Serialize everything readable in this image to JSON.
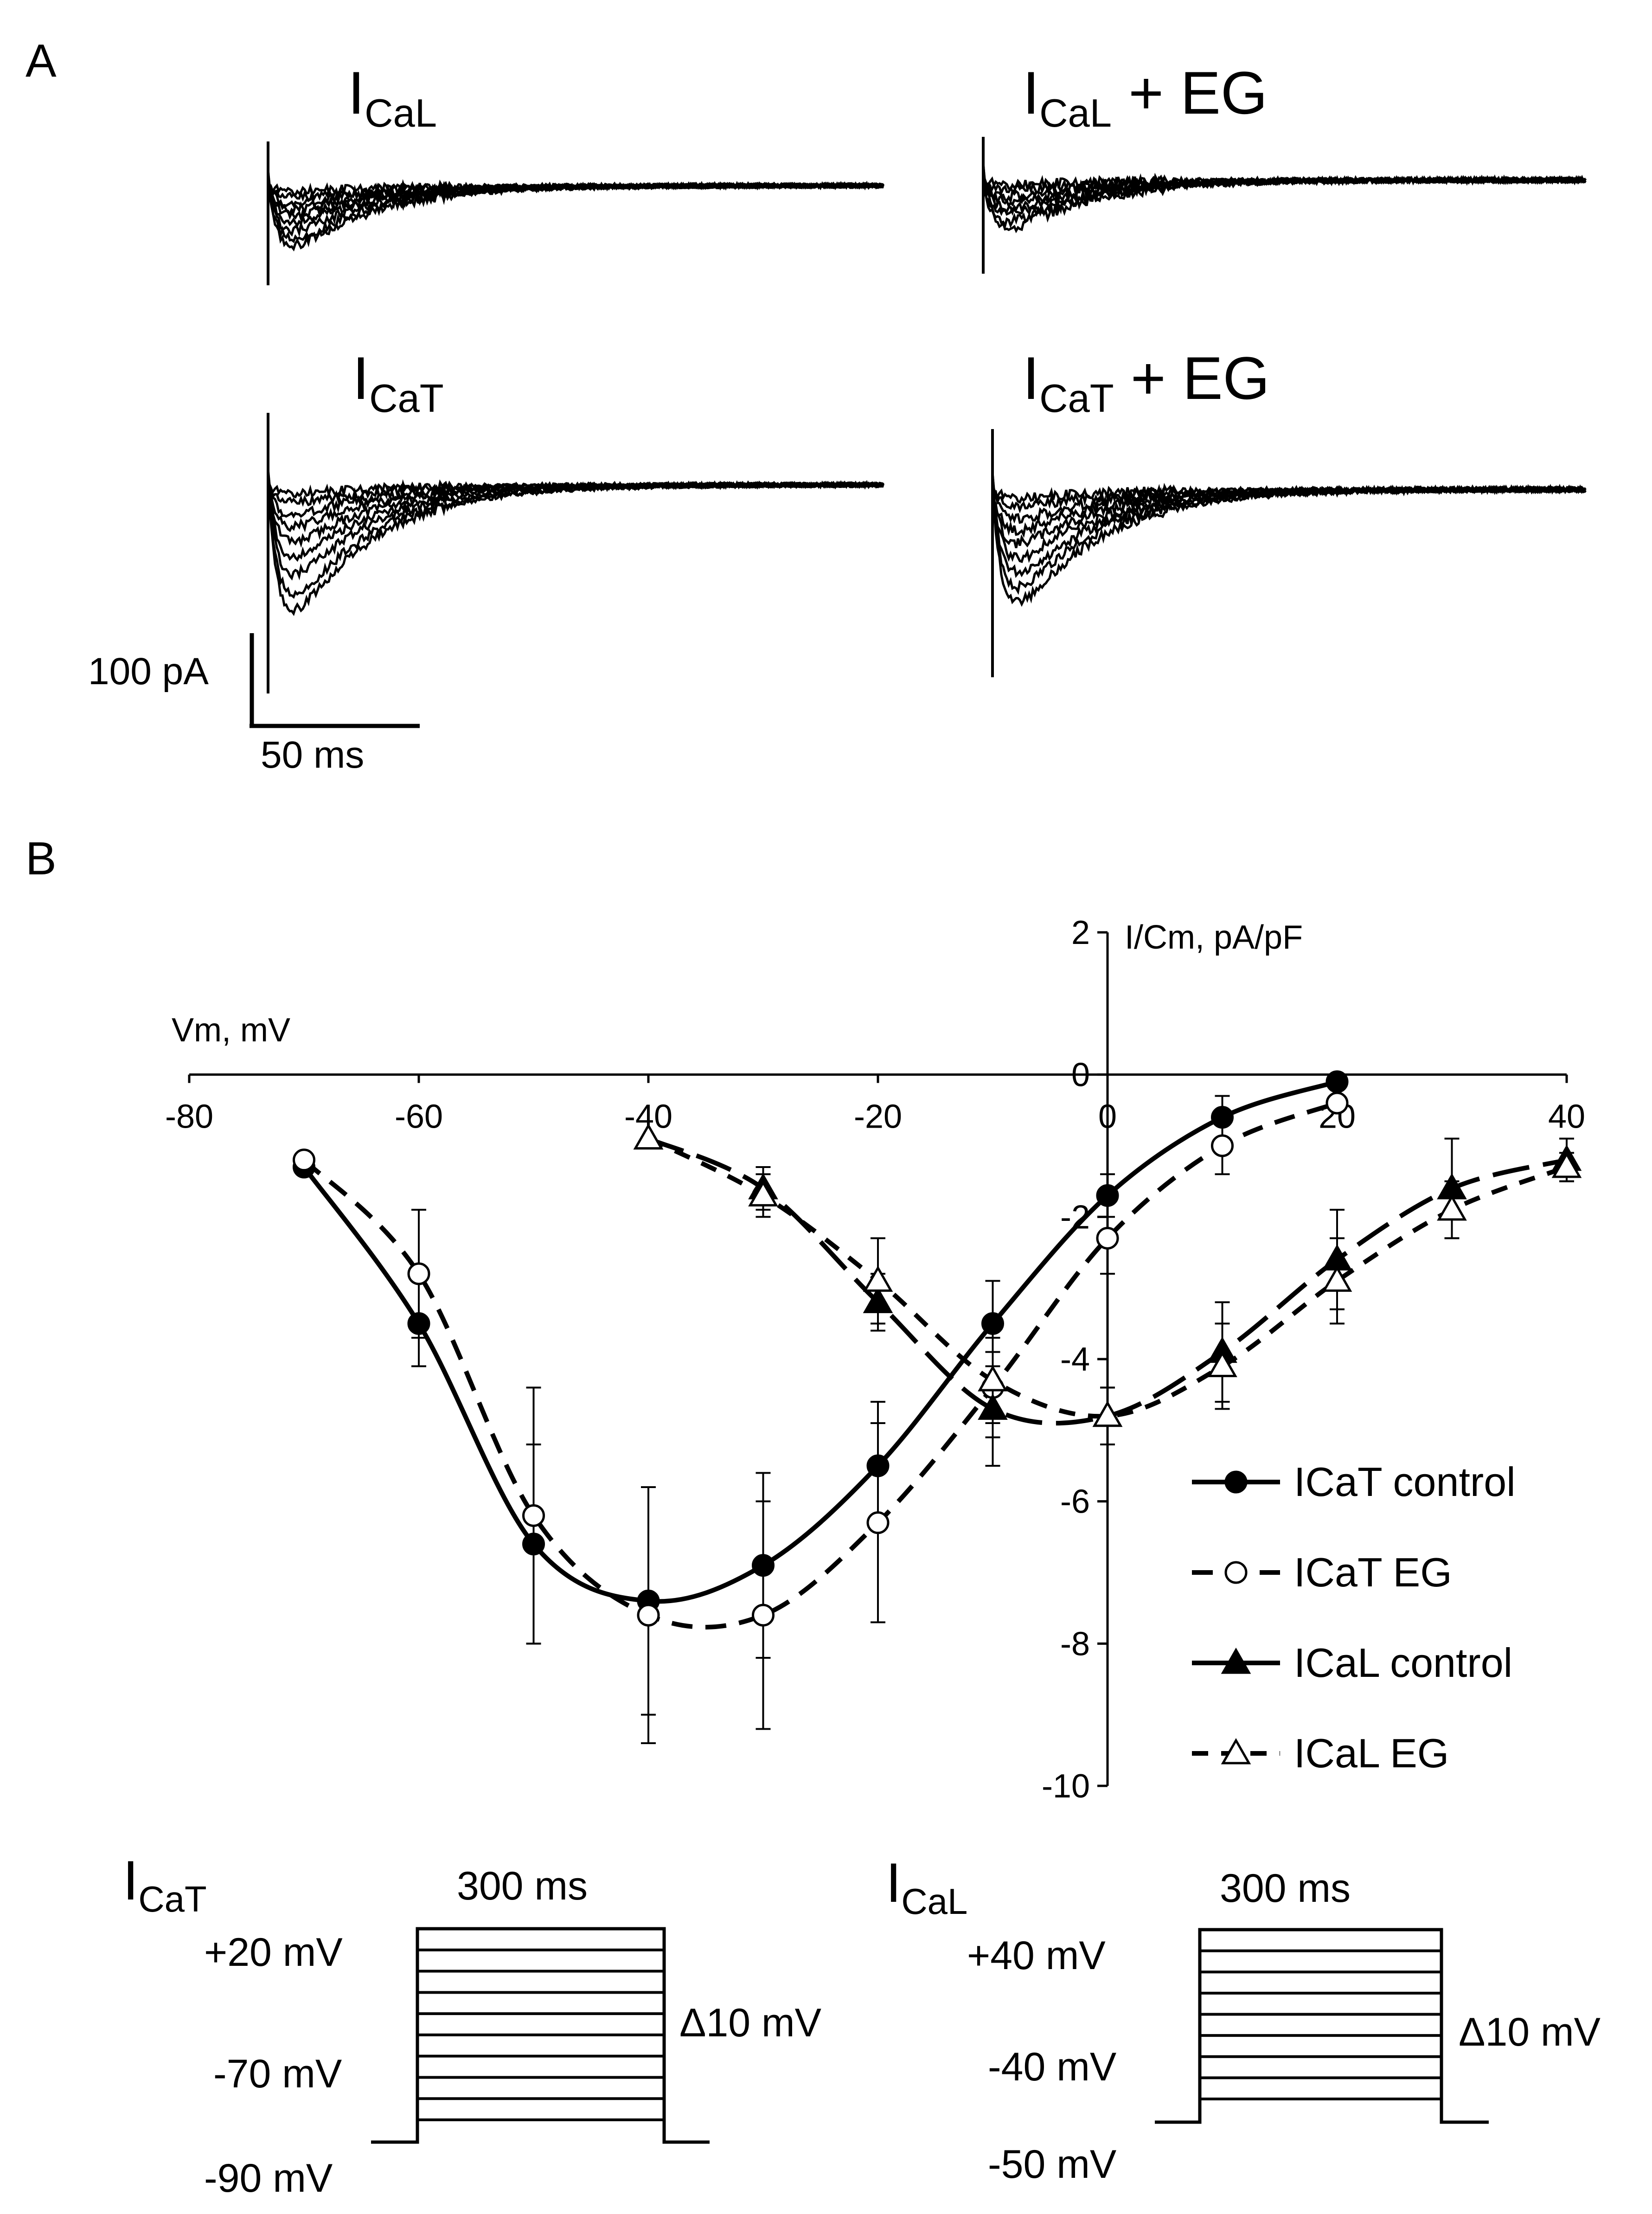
{
  "panels": {
    "a_label": "A",
    "b_label": "B"
  },
  "traces": [
    {
      "main": "I",
      "sub": "CaL",
      "suffix": ""
    },
    {
      "main": "I",
      "sub": "CaL",
      "suffix": " + EG"
    },
    {
      "main": "I",
      "sub": "CaT",
      "suffix": ""
    },
    {
      "main": "I",
      "sub": "CaT",
      "suffix": " + EG"
    }
  ],
  "scalebar": {
    "current": "100 pA",
    "time": "50 ms"
  },
  "chart_data": {
    "type": "line",
    "title": "",
    "xlabel": "Vm, mV",
    "ylabel": "I/Cm,  pA/pF",
    "xlim": [
      -80,
      40
    ],
    "ylim": [
      -10,
      2
    ],
    "xticks": [
      -80,
      -60,
      -40,
      -20,
      0,
      20,
      40
    ],
    "yticks": [
      2,
      0,
      -2,
      -4,
      -6,
      -8,
      -10
    ],
    "series": [
      {
        "name": "ICaT control",
        "marker": "filled-circle",
        "dash": "solid",
        "x": [
          -70,
          -60,
          -50,
          -40,
          -30,
          -20,
          -10,
          0,
          10,
          20
        ],
        "y": [
          -1.3,
          -3.5,
          -6.6,
          -7.4,
          -6.9,
          -5.5,
          -3.5,
          -1.7,
          -0.6,
          -0.1
        ],
        "err": [
          0,
          0.6,
          1.4,
          1.6,
          1.3,
          0.9,
          0.6,
          0.3,
          0.3,
          0
        ]
      },
      {
        "name": "ICaT EG",
        "marker": "open-circle",
        "dash": "dashed",
        "x": [
          -70,
          -60,
          -50,
          -40,
          -30,
          -20,
          -10,
          0,
          10,
          20
        ],
        "y": [
          -1.2,
          -2.8,
          -6.2,
          -7.6,
          -7.6,
          -6.3,
          -4.4,
          -2.3,
          -1.0,
          -0.4
        ],
        "err": [
          0,
          0.9,
          1.8,
          1.8,
          1.6,
          1.4,
          0.7,
          0.5,
          0.4,
          0
        ]
      },
      {
        "name": "ICaL control",
        "marker": "filled-triangle",
        "dash": "long-dash",
        "x": [
          -40,
          -30,
          -20,
          -10,
          0,
          10,
          20,
          30,
          40
        ],
        "y": [
          -0.9,
          -1.6,
          -3.2,
          -4.7,
          -4.8,
          -3.9,
          -2.6,
          -1.6,
          -1.2
        ],
        "err": [
          0,
          0.3,
          0.4,
          0.8,
          0.4,
          0.7,
          0.7,
          0.7,
          0.3
        ]
      },
      {
        "name": "ICaL EG",
        "marker": "open-triangle",
        "dash": "short-dash",
        "x": [
          -40,
          -30,
          -20,
          -10,
          0,
          10,
          20,
          30,
          40
        ],
        "y": [
          -0.9,
          -1.7,
          -2.9,
          -4.3,
          -4.8,
          -4.1,
          -2.9,
          -1.9,
          -1.3
        ],
        "err": [
          0,
          0.3,
          0.6,
          0.6,
          0.4,
          0.6,
          0.6,
          0.4,
          0.2
        ]
      }
    ]
  },
  "protocols": [
    {
      "main": "I",
      "sub": "CaT",
      "duration": "300 ms",
      "top": "+20 mV",
      "lower": "-70 mV",
      "hold": "-90 mV",
      "step": "Δ10 mV"
    },
    {
      "main": "I",
      "sub": "CaL",
      "duration": "300 ms",
      "top": "+40 mV",
      "lower": "-40 mV",
      "hold": "-50 mV",
      "step": "Δ10 mV"
    }
  ],
  "colors": {
    "ink": "#000000",
    "paper": "#ffffff"
  }
}
